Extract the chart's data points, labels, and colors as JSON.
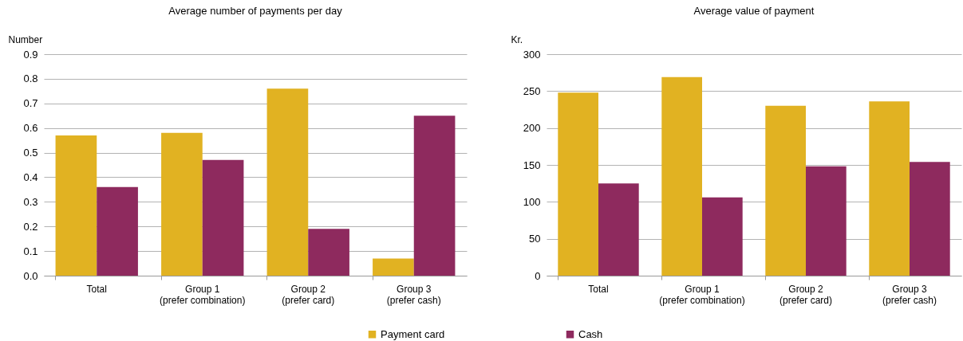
{
  "chart_data": [
    {
      "type": "bar",
      "title": "Average number of payments per day",
      "ylabel": "Number",
      "categories": [
        "Total",
        "Group 1\n(prefer combination)",
        "Group 2\n(prefer card)",
        "Group 3\n(prefer cash)"
      ],
      "series": [
        {
          "name": "Payment card",
          "color": "#e1b222",
          "values": [
            0.57,
            0.58,
            0.76,
            0.07
          ]
        },
        {
          "name": "Cash",
          "color": "#8e2a5e",
          "values": [
            0.36,
            0.47,
            0.19,
            0.65
          ]
        }
      ],
      "ylim": [
        0,
        0.9
      ],
      "yticks": [
        {
          "value": 0,
          "label": "0.0"
        },
        0.1,
        0.2,
        0.3,
        0.4,
        0.5,
        0.6,
        0.7,
        0.8,
        0.9
      ],
      "grid": "y",
      "legend": "bottom"
    },
    {
      "type": "bar",
      "title": "Average value of payment",
      "ylabel": "Kr.",
      "categories": [
        "Total",
        "Group 1\n(prefer combination)",
        "Group 2\n(prefer card)",
        "Group 3\n(prefer cash)"
      ],
      "series": [
        {
          "color": "#e1b222",
          "values": [
            248,
            269,
            230,
            236
          ]
        },
        {
          "color": "#8e2a5e",
          "values": [
            125,
            106,
            148,
            154
          ]
        }
      ],
      "ylim": [
        0,
        300
      ],
      "yticks": [
        0,
        50,
        100,
        150,
        200,
        250,
        300
      ],
      "grid": "y"
    }
  ]
}
